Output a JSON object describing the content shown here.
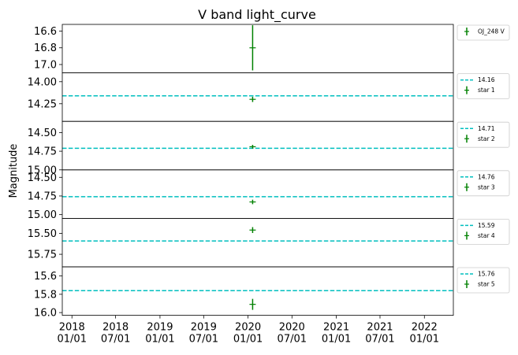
{
  "chart_data": {
    "type": "scatter",
    "title": "V band light_curve",
    "ylabel": "Magnitude",
    "x_ticks": [
      {
        "date": "2018-01-01",
        "label": [
          "2018",
          "01/01"
        ]
      },
      {
        "date": "2018-07-01",
        "label": [
          "2018",
          "07/01"
        ]
      },
      {
        "date": "2019-01-01",
        "label": [
          "2019",
          "01/01"
        ]
      },
      {
        "date": "2019-07-01",
        "label": [
          "2019",
          "07/01"
        ]
      },
      {
        "date": "2020-01-01",
        "label": [
          "2020",
          "01/01"
        ]
      },
      {
        "date": "2020-07-01",
        "label": [
          "2020",
          "07/01"
        ]
      },
      {
        "date": "2021-01-01",
        "label": [
          "2021",
          "01/01"
        ]
      },
      {
        "date": "2021-07-01",
        "label": [
          "2021",
          "07/01"
        ]
      },
      {
        "date": "2022-01-01",
        "label": [
          "2022",
          "01/01"
        ]
      }
    ],
    "xlim": [
      "2017-11-22",
      "2022-05-01"
    ],
    "colors": {
      "points": "#008000",
      "reference_line": "#00bfbf"
    },
    "panels": [
      {
        "name": "OJ_248 V",
        "ylim": [
          17.1,
          16.52
        ],
        "yticks": [
          "16.6",
          "16.8",
          "17.0"
        ],
        "points": [
          {
            "x": "2020-01-20",
            "y": 16.8,
            "yerr": 0.27
          }
        ],
        "legend": [
          {
            "type": "errorbar",
            "label": "OJ_248 V"
          }
        ]
      },
      {
        "name": "star 1",
        "ylim": [
          14.45,
          13.9
        ],
        "yticks": [
          "14.00",
          "14.25"
        ],
        "reference": 14.16,
        "points": [
          {
            "x": "2020-01-20",
            "y": 14.2,
            "yerr": 0.03
          }
        ],
        "legend": [
          {
            "type": "line",
            "label": "14.16"
          },
          {
            "type": "errorbar",
            "label": "star 1"
          }
        ]
      },
      {
        "name": "star 2",
        "ylim": [
          15.0,
          14.35
        ],
        "yticks": [
          "14.50",
          "14.75",
          "15.00"
        ],
        "reference": 14.71,
        "points": [
          {
            "x": "2020-01-20",
            "y": 14.69,
            "yerr": 0.025
          }
        ],
        "legend": [
          {
            "type": "line",
            "label": "14.71"
          },
          {
            "type": "errorbar",
            "label": "star 2"
          }
        ]
      },
      {
        "name": "star 3",
        "ylim": [
          15.05,
          14.4
        ],
        "yticks": [
          "14.50",
          "14.75",
          "15.00"
        ],
        "reference": 14.76,
        "points": [
          {
            "x": "2020-01-20",
            "y": 14.83,
            "yerr": 0.03
          }
        ],
        "legend": [
          {
            "type": "line",
            "label": "14.76"
          },
          {
            "type": "errorbar",
            "label": "star 3"
          }
        ]
      },
      {
        "name": "star 4",
        "ylim": [
          15.9,
          15.32
        ],
        "yticks": [
          "15.50",
          "15.75"
        ],
        "reference": 15.59,
        "points": [
          {
            "x": "2020-01-20",
            "y": 15.46,
            "yerr": 0.035
          }
        ],
        "legend": [
          {
            "type": "line",
            "label": "15.59"
          },
          {
            "type": "errorbar",
            "label": "star 4"
          }
        ]
      },
      {
        "name": "star 5",
        "ylim": [
          16.03,
          15.5
        ],
        "yticks": [
          "15.6",
          "15.8",
          "16.0"
        ],
        "reference": 15.76,
        "points": [
          {
            "x": "2020-01-20",
            "y": 15.91,
            "yerr": 0.06
          }
        ],
        "legend": [
          {
            "type": "line",
            "label": "15.76"
          },
          {
            "type": "errorbar",
            "label": "star 5"
          }
        ]
      }
    ]
  }
}
